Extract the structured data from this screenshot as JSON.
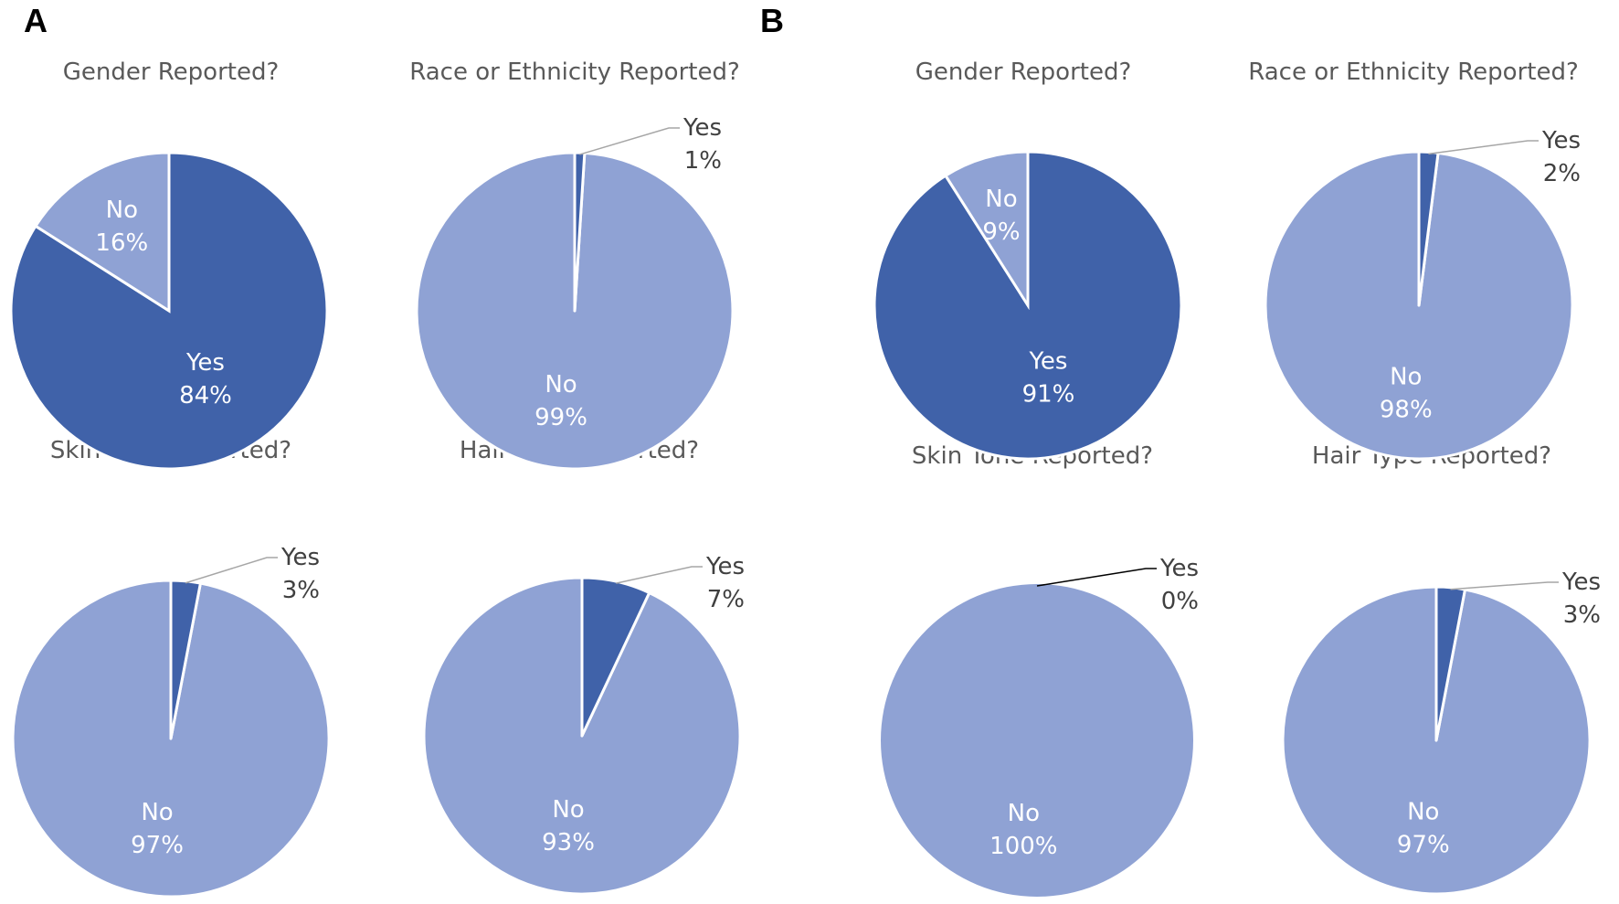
{
  "panels": [
    {
      "letter": "A"
    },
    {
      "letter": "B"
    }
  ],
  "colors": {
    "yes": "#4062A9",
    "no": "#8FA2D4",
    "leader": "#A6A6A6",
    "outside_label": "#404040",
    "inside_label": "#FFFFFF",
    "title": "#595959"
  },
  "chart_data": [
    {
      "type": "pie",
      "panel": "A",
      "title": "Gender Reported?",
      "slices": [
        {
          "label": "Yes",
          "percent_label": "84%",
          "value": 84
        },
        {
          "label": "No",
          "percent_label": "16%",
          "value": 16
        }
      ]
    },
    {
      "type": "pie",
      "panel": "A",
      "title": "Race or Ethnicity Reported?",
      "slices": [
        {
          "label": "Yes",
          "percent_label": "1%",
          "value": 1
        },
        {
          "label": "No",
          "percent_label": "99%",
          "value": 99
        }
      ]
    },
    {
      "type": "pie",
      "panel": "A",
      "title": "Skin Tone Reported?",
      "slices": [
        {
          "label": "Yes",
          "percent_label": "3%",
          "value": 3
        },
        {
          "label": "No",
          "percent_label": "97%",
          "value": 97
        }
      ]
    },
    {
      "type": "pie",
      "panel": "A",
      "title": "Hair Type Reported?",
      "slices": [
        {
          "label": "Yes",
          "percent_label": "7%",
          "value": 7
        },
        {
          "label": "No",
          "percent_label": "93%",
          "value": 93
        }
      ]
    },
    {
      "type": "pie",
      "panel": "B",
      "title": "Gender Reported?",
      "slices": [
        {
          "label": "Yes",
          "percent_label": "91%",
          "value": 91
        },
        {
          "label": "No",
          "percent_label": "9%",
          "value": 9
        }
      ]
    },
    {
      "type": "pie",
      "panel": "B",
      "title": "Race or Ethnicity Reported?",
      "slices": [
        {
          "label": "Yes",
          "percent_label": "2%",
          "value": 2
        },
        {
          "label": "No",
          "percent_label": "98%",
          "value": 98
        }
      ]
    },
    {
      "type": "pie",
      "panel": "B",
      "title": "Skin Tone Reported?",
      "slices": [
        {
          "label": "Yes",
          "percent_label": "0%",
          "value": 0
        },
        {
          "label": "No",
          "percent_label": "100%",
          "value": 100
        }
      ]
    },
    {
      "type": "pie",
      "panel": "B",
      "title": "Hair Type Reported?",
      "slices": [
        {
          "label": "Yes",
          "percent_label": "3%",
          "value": 3
        },
        {
          "label": "No",
          "percent_label": "97%",
          "value": 97
        }
      ]
    }
  ]
}
